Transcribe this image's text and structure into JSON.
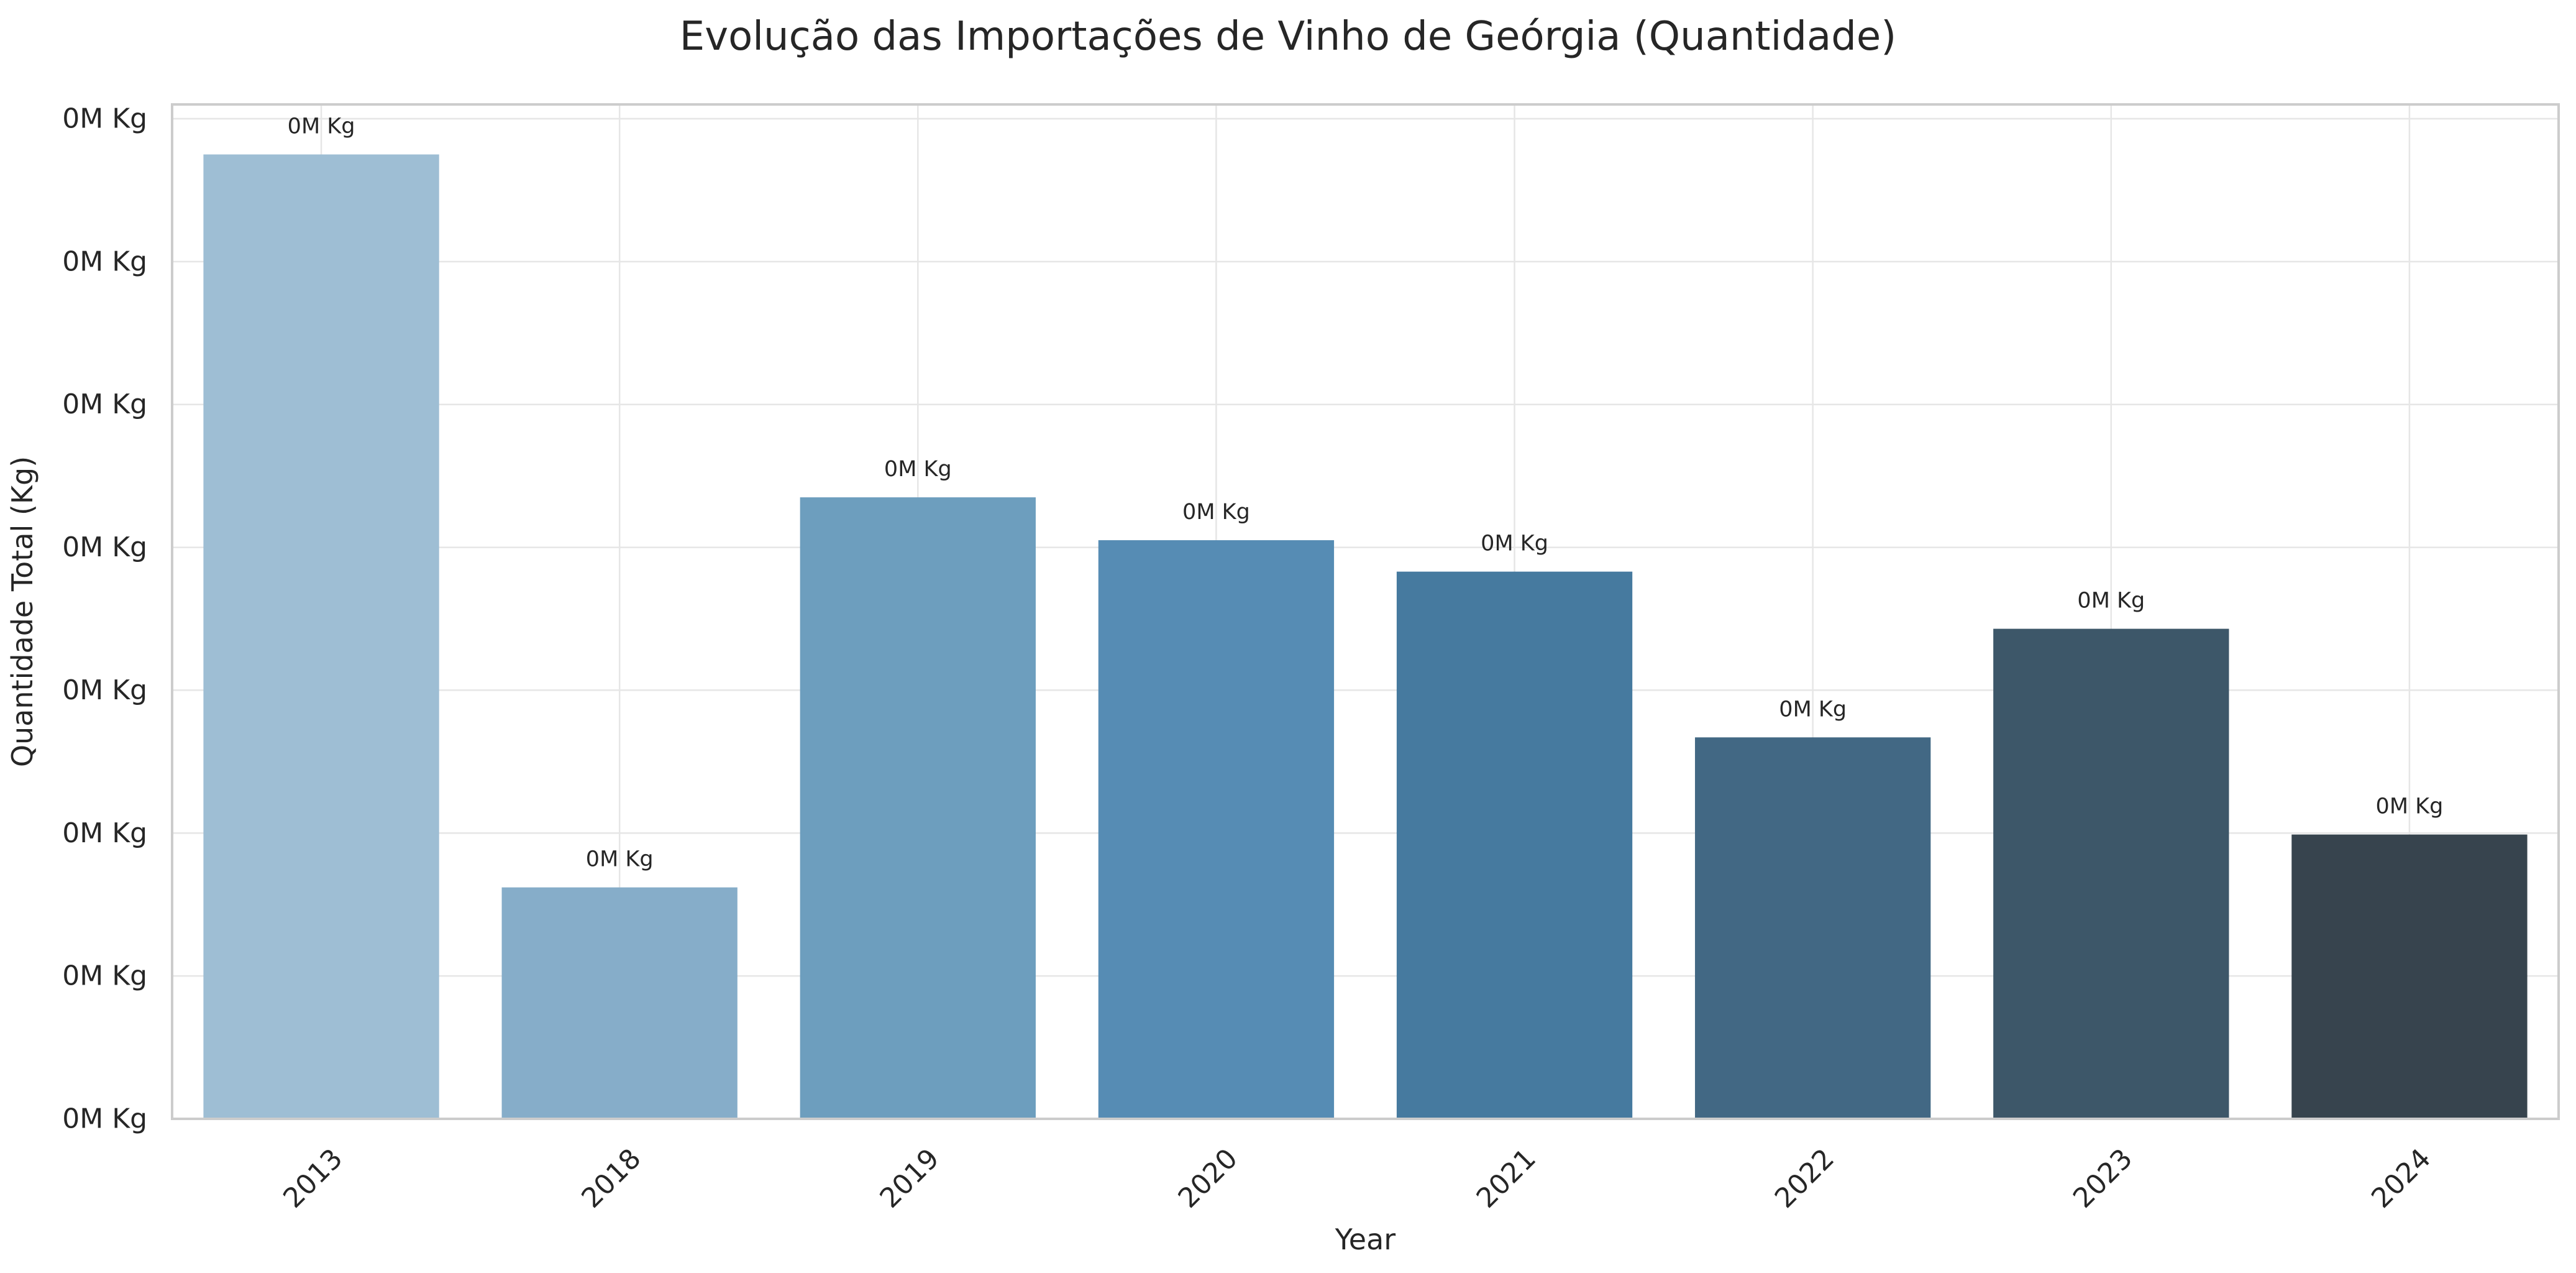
{
  "chart_data": {
    "type": "bar",
    "title": "Evolução das Importações de Vinho de Geórgia (Quantidade)",
    "xlabel": "Year",
    "ylabel": "Quantidade Total (Kg)",
    "categories": [
      "2013",
      "2018",
      "2019",
      "2020",
      "2021",
      "2022",
      "2023",
      "2024"
    ],
    "values": [
      6.75,
      1.62,
      4.35,
      4.05,
      3.83,
      2.67,
      3.43,
      1.99
    ],
    "data_labels": [
      "0M Kg",
      "0M Kg",
      "0M Kg",
      "0M Kg",
      "0M Kg",
      "0M Kg",
      "0M Kg",
      "0M Kg"
    ],
    "ylim": [
      0,
      7.1
    ],
    "y_ticks": [
      0,
      1,
      2,
      3,
      4,
      5,
      6,
      7
    ],
    "y_tick_labels": [
      "0M Kg",
      "0M Kg",
      "0M Kg",
      "0M Kg",
      "0M Kg",
      "0M Kg",
      "0M Kg",
      "0M Kg"
    ],
    "x_tick_rotation": -45,
    "grid": true,
    "legend": null,
    "colors": [
      "#9ebed4",
      "#86adc9",
      "#6d9ebe",
      "#568cb4",
      "#467a9f",
      "#426884",
      "#3d5769",
      "#37444e"
    ]
  }
}
